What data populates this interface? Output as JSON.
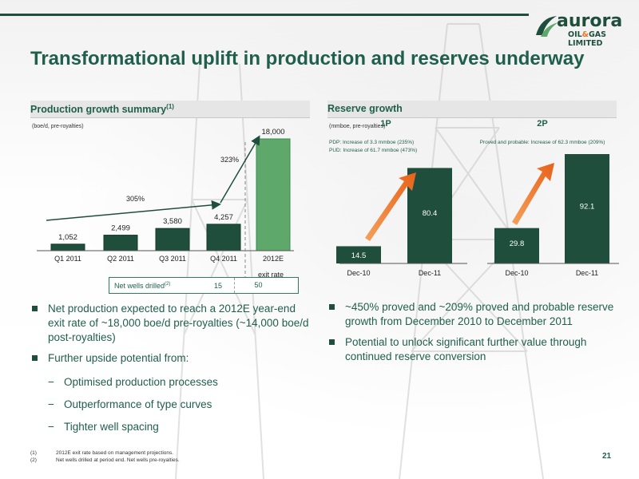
{
  "title": "Transformational uplift in production and reserves underway",
  "logo": {
    "name": "aurora",
    "sub_left": "OIL",
    "sub_amp": "&",
    "sub_right": "GAS LIMITED"
  },
  "colors": {
    "dark_green": "#1f4e3d",
    "title_green": "#1f5f4c",
    "bar_dark": "#1f4e3d",
    "bar_light": "#5fa86b",
    "arrow_orange": "#f07c1e"
  },
  "production": {
    "header": "Production growth summary",
    "header_sup": "(1)",
    "unit": "(boe/d, pre-royalties)",
    "growth_305": "305%",
    "growth_323": "323%",
    "exit_rate_label": "exit rate",
    "wells": {
      "label": "Net wells drilled",
      "sup": "(2)",
      "q4": "15",
      "e2012": "50"
    }
  },
  "reserves": {
    "header": "Reserve growth",
    "unit": "(mmboe, pre-royalties)",
    "p1_title": "1P",
    "p1_note1": "PDP: Increase of 3.3 mmboe (235%)",
    "p1_note2": "PUD: Increase of 61.7 mmboe (473%)",
    "p2_title": "2P",
    "p2_note": "Proved and probable: Increase of 62.3 mmboe (209%)"
  },
  "left_bullets": {
    "b1": "Net production expected to reach a 2012E year-end exit rate of ~18,000 boe/d pre-royalties (~14,000 boe/d post-royalties)",
    "b2": "Further upside potential from:",
    "s1": "Optimised production processes",
    "s2": "Outperformance of type curves",
    "s3": "Tighter well spacing"
  },
  "right_bullets": {
    "b1": "~450% proved and ~209% proved and probable reserve growth from December 2010 to December 2011",
    "b2": "Potential to unlock significant further value through continued reserve conversion"
  },
  "footnotes": [
    {
      "num": "(1)",
      "text": "2012E exit rate based on management projections."
    },
    {
      "num": "(2)",
      "text": "Net wells drilled at period end. Net wells pre-royalties."
    }
  ],
  "page_number": "21",
  "chart_data": [
    {
      "type": "bar",
      "title": "Production growth summary",
      "ylabel": "(boe/d, pre-royalties)",
      "categories": [
        "Q1 2011",
        "Q2 2011",
        "Q3 2011",
        "Q4 2011",
        "2012E"
      ],
      "values": [
        1052,
        2499,
        3580,
        4257,
        18000
      ],
      "value_labels": [
        "1,052",
        "2,499",
        "3,580",
        "4,257",
        "18,000"
      ],
      "ylim": [
        0,
        18000
      ]
    },
    {
      "type": "bar",
      "title": "1P",
      "categories": [
        "Dec-10",
        "Dec-11"
      ],
      "values": [
        14.5,
        80.4
      ],
      "value_labels": [
        "14.5",
        "80.4"
      ],
      "ylim": [
        0,
        92.1
      ]
    },
    {
      "type": "bar",
      "title": "2P",
      "categories": [
        "Dec-10",
        "Dec-11"
      ],
      "values": [
        29.8,
        92.1
      ],
      "value_labels": [
        "29.8",
        "92.1"
      ],
      "ylim": [
        0,
        92.1
      ]
    }
  ]
}
